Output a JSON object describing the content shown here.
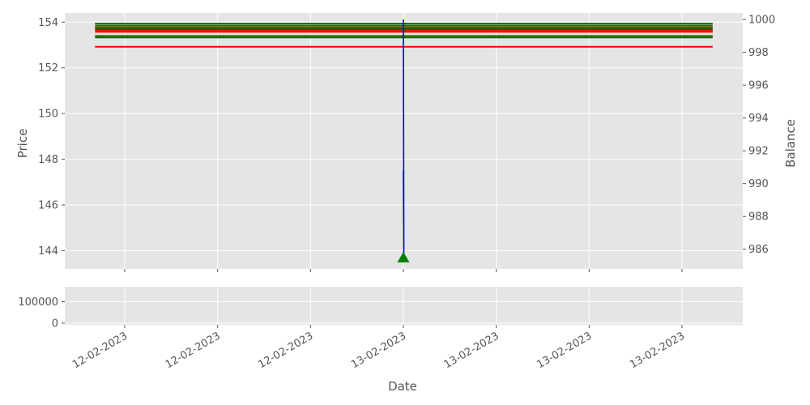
{
  "chart_data": {
    "type": "line",
    "style": "ggplot",
    "xlabel": "Date",
    "panels": {
      "price": {
        "ylabel": "Price",
        "ylim": [
          143.2,
          154.4
        ],
        "yticks": [
          144,
          146,
          148,
          150,
          152,
          154
        ],
        "grid": true,
        "horizontal_levels": [
          {
            "value": 153.93,
            "color": "#006400"
          },
          {
            "value": 153.84,
            "color": "#2f6a00"
          },
          {
            "value": 153.76,
            "color": "#d22000"
          },
          {
            "value": 153.7,
            "color": "#006400"
          },
          {
            "value": 153.64,
            "color": "#d22000"
          },
          {
            "value": 153.57,
            "color": "#d22000"
          },
          {
            "value": 153.4,
            "color": "#4f6a00"
          },
          {
            "value": 153.33,
            "color": "#006400"
          },
          {
            "value": 152.92,
            "color": "#ff0000"
          }
        ],
        "markers": [
          {
            "type": "buy",
            "symbol": "triangle-up",
            "color": "#008000",
            "x_index": 3,
            "y": 143.7
          }
        ]
      },
      "balance": {
        "ylabel": "Balance",
        "ylim": [
          984.8,
          1000.4
        ],
        "yticks": [
          986,
          988,
          990,
          992,
          994,
          996,
          998,
          1000
        ],
        "series": [
          {
            "color": "#0000ff",
            "x_index": 3,
            "values": [
              1000.0,
              985.2,
              990.8,
              985.2
            ]
          }
        ]
      },
      "volume": {
        "ylim": [
          -8000,
          170000
        ],
        "yticks": [
          0,
          100000
        ],
        "grid": true
      }
    },
    "x_ticks": [
      "12-02-2023",
      "12-02-2023",
      "12-02-2023",
      "13-02-2023",
      "13-02-2023",
      "13-02-2023",
      "13-02-2023"
    ],
    "level_span_index": [
      -0.32,
      6.33
    ]
  }
}
